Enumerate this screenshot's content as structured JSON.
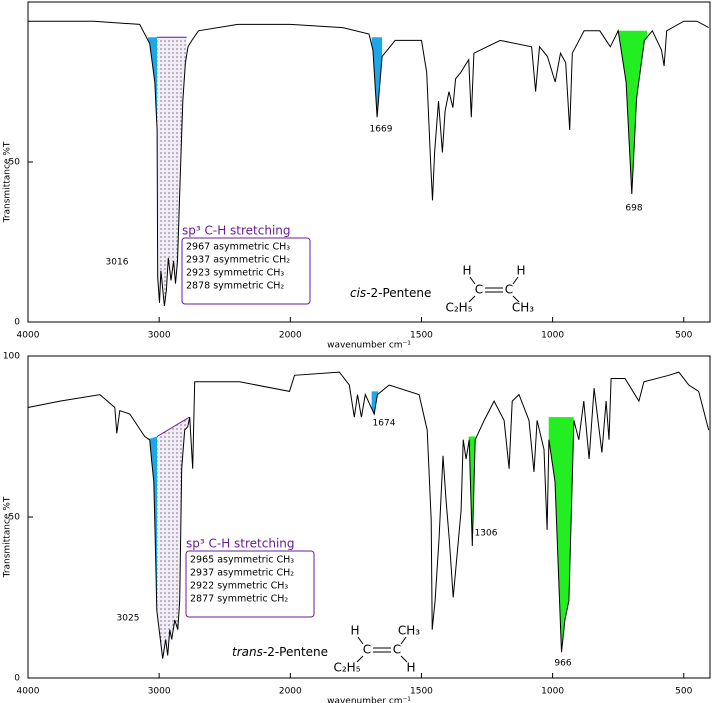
{
  "chart_data": [
    {
      "type": "line",
      "color": "#000000",
      "x": [
        4000,
        3500,
        3148,
        3110,
        3072,
        3033,
        3016,
        3011,
        2997,
        2987,
        2972,
        2960,
        2945,
        2930,
        2910,
        2890,
        2875,
        2860,
        2840,
        2820,
        2800,
        2780,
        2750,
        2700,
        2400,
        2000,
        1800,
        1700,
        1685,
        1669,
        1650,
        1600,
        1500,
        1480,
        1465,
        1458,
        1450,
        1435,
        1420,
        1410,
        1395,
        1380,
        1370,
        1350,
        1320,
        1310,
        1300,
        1200,
        1080,
        1065,
        1050,
        1020,
        990,
        970,
        950,
        935,
        925,
        880,
        820,
        780,
        750,
        720,
        698,
        680,
        650,
        620,
        585,
        575,
        565,
        500,
        450,
        405
      ],
      "values": [
        94,
        94,
        93,
        90,
        87,
        75,
        60,
        14,
        6,
        16,
        10,
        5,
        10,
        20,
        13,
        19,
        12,
        19,
        44,
        69,
        81,
        86,
        88,
        91,
        93,
        93,
        92,
        90,
        85,
        64,
        83,
        88,
        88,
        78,
        50,
        38,
        53,
        69,
        53,
        66,
        72,
        67,
        76,
        78,
        82,
        64,
        84,
        88,
        86,
        72,
        86,
        83,
        75,
        84,
        81,
        60,
        84,
        91,
        91,
        86,
        91,
        75,
        40,
        70,
        88,
        91,
        85,
        80,
        91,
        94,
        94,
        92
      ],
      "xlim": [
        4000,
        400
      ],
      "xticks": [
        4000,
        3000,
        2000,
        1500,
        1000,
        500
      ],
      "ylim": [
        0,
        100
      ],
      "yticks": [
        0,
        50
      ],
      "xlabel": "wavenumber cm⁻¹",
      "ylabel": "Transmittance %T",
      "regions": [
        {
          "x": [
            3085,
            3016
          ],
          "level": [
            89,
            89
          ],
          "color": "#1ea7e8"
        },
        {
          "x": [
            3016,
            2790
          ],
          "level": [
            89,
            89
          ],
          "color": "#6a1b9a",
          "pattern": "dots"
        },
        {
          "x": [
            1690,
            1650
          ],
          "level": [
            89,
            89
          ],
          "color": "#1ea7e8"
        },
        {
          "x": [
            755,
            640
          ],
          "level": [
            91,
            91
          ],
          "color": "#22ee22"
        }
      ],
      "peak_labels": [
        3016,
        1669,
        698
      ],
      "annotation": {
        "title": "sp³ C-H stretching",
        "lines": [
          "2967 asymmetric CH₃",
          "2937 asymmetric CH₂",
          "2923 symmetric CH₃",
          "2878 symmetric CH₂"
        ]
      },
      "compound": "cis-2-Pentene",
      "structure": {
        "top_left": "H",
        "top_right": "H",
        "left_carbon": "C",
        "right_carbon": "C",
        "bottom_left": "C₂H₅",
        "bottom_right": "CH₃"
      }
    },
    {
      "type": "line",
      "color": "#000000",
      "x": [
        4000,
        3756,
        3452,
        3338,
        3323,
        3300,
        3224,
        3110,
        3072,
        3056,
        3041,
        3026,
        3018,
        2973,
        2950,
        2935,
        2919,
        2904,
        2881,
        2858,
        2843,
        2828,
        2805,
        2782,
        2767,
        2744,
        2729,
        2387,
        2006,
        1984,
        1813,
        1775,
        1756,
        1744,
        1729,
        1714,
        1680,
        1668,
        1623,
        1509,
        1478,
        1463,
        1459,
        1448,
        1433,
        1418,
        1406,
        1394,
        1379,
        1349,
        1341,
        1330,
        1318,
        1306,
        1295,
        1261,
        1223,
        1185,
        1166,
        1154,
        1128,
        1090,
        1071,
        1059,
        1033,
        1021,
        1014,
        991,
        966,
        953,
        938,
        919,
        900,
        881,
        861,
        842,
        812,
        796,
        785,
        777,
        724,
        671,
        652,
        557,
        519,
        481,
        443,
        405
      ],
      "values": [
        84,
        86,
        88,
        84,
        76,
        83,
        82,
        75,
        74,
        67,
        61,
        37,
        21,
        6,
        12,
        7,
        15,
        12,
        18,
        15,
        24,
        65,
        77,
        78,
        81,
        65,
        92,
        92,
        89,
        94,
        95,
        91,
        81,
        88,
        81,
        88,
        82,
        88,
        91,
        88,
        77,
        49,
        15,
        24,
        43,
        69,
        55,
        43,
        25,
        52,
        74,
        68,
        74,
        41,
        74,
        80,
        86,
        80,
        65,
        86,
        88,
        80,
        64,
        80,
        71,
        46,
        74,
        61,
        8,
        18,
        24,
        80,
        74,
        86,
        68,
        90,
        70,
        86,
        74,
        93,
        93,
        86,
        92,
        94,
        95,
        91,
        89,
        77
      ],
      "xlim": [
        4000,
        400
      ],
      "xticks": [
        4000,
        3000,
        2000,
        1500,
        1000,
        500
      ],
      "ylim": [
        0,
        100
      ],
      "yticks": [
        0,
        50,
        100
      ],
      "xlabel": "wavenumber cm⁻¹",
      "ylabel": "Transmittance %T",
      "regions": [
        {
          "x": [
            3100,
            3016
          ],
          "level": [
            74,
            75
          ],
          "color": "#1ea7e8"
        },
        {
          "x": [
            3016,
            2770
          ],
          "level": [
            75,
            81
          ],
          "color": "#6a1b9a",
          "pattern": "dots"
        },
        {
          "x": [
            1690,
            1665
          ],
          "level": [
            89,
            89
          ],
          "color": "#1ea7e8"
        },
        {
          "x": [
            1320,
            1295
          ],
          "level": [
            75,
            75
          ],
          "color": "#22ee22"
        },
        {
          "x": [
            1015,
            920
          ],
          "level": [
            81,
            81
          ],
          "color": "#22ee22"
        }
      ],
      "peak_labels": [
        3025,
        1674,
        1306,
        966
      ],
      "annotation": {
        "title": "sp³ C-H stretching",
        "lines": [
          "2965 asymmetric CH₃",
          "2937 asymmetric CH₂",
          "2922 symmetric CH₃",
          "2877 symmetric CH₂"
        ]
      },
      "compound": "trans-2-Pentene",
      "structure": {
        "top_left": "H",
        "top_right": "CH₃",
        "left_carbon": "C",
        "right_carbon": "C",
        "bottom_left": "C₂H₅",
        "bottom_right": "H"
      }
    }
  ]
}
